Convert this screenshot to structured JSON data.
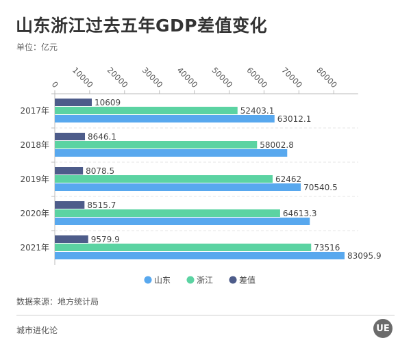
{
  "title": "山东浙江过去五年GDP差值变化",
  "unit": "单位：亿元",
  "source": "数据来源：地方统计局",
  "brand": "城市进化论",
  "logo": "UE",
  "chart_data": {
    "type": "bar",
    "orientation": "horizontal",
    "categories": [
      "2017年",
      "2018年",
      "2019年",
      "2020年",
      "2021年"
    ],
    "xlim": [
      0,
      87000
    ],
    "x_ticks": [
      0,
      10000,
      20000,
      30000,
      40000,
      50000,
      60000,
      70000,
      80000
    ],
    "legend_position": "bottom",
    "grid": "dashed horizontal separators",
    "series": [
      {
        "name": "差值",
        "color": "#4d5c8a",
        "values": [
          10609,
          8646.1,
          8078.5,
          8515.7,
          9579.9
        ],
        "labels": [
          "10609",
          "8646.1",
          "8078.5",
          "8515.7",
          "9579.9"
        ]
      },
      {
        "name": "浙江",
        "color": "#5bd3a2",
        "values": [
          52403.1,
          58002.8,
          62462,
          64613.3,
          73516
        ],
        "labels": [
          "52403.1",
          "58002.8",
          "62462",
          "64613.3",
          "73516"
        ]
      },
      {
        "name": "山东",
        "color": "#58a8ee",
        "values": [
          63012.1,
          66648.9,
          70540.5,
          73129,
          83095.9
        ],
        "labels": [
          "63012.1",
          null,
          "70540.5",
          null,
          "83095.9"
        ]
      }
    ],
    "legend_order": [
      "山东",
      "浙江",
      "差值"
    ]
  }
}
